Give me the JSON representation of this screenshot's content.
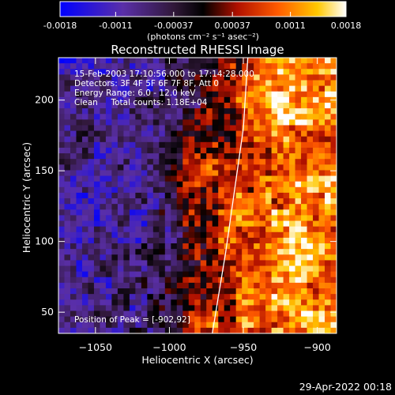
{
  "chart_data": {
    "type": "heatmap",
    "title": "Reconstructed RHESSI Image",
    "xlabel": "Heliocentric X (arcsec)",
    "ylabel": "Heliocentric Y (arcsec)",
    "xlim": [
      -1075,
      -887
    ],
    "ylim": [
      35,
      230
    ],
    "x_ticks": [
      -1050,
      -1000,
      -950,
      -900
    ],
    "y_ticks": [
      50,
      100,
      150,
      200
    ],
    "colorbar": {
      "range": [
        -0.0018,
        0.0018
      ],
      "tick_values": [
        -0.0018,
        -0.0011,
        -0.00037,
        0.00037,
        0.0011,
        0.0018
      ],
      "tick_labels": [
        "-0.0018",
        "-0.0011",
        "-0.00037",
        "0.00037",
        "0.0011",
        "0.0018"
      ],
      "unit": "(photons cm⁻² s⁻¹ asec⁻²)"
    },
    "annotations": [
      "15-Feb-2003 17:10:56.000 to 17:14:28.000",
      "Detectors: 3F 4F 5F 6F 7F 8F, Att 0",
      "Energy Range: 6.0 - 12.0 keV",
      "Clean     Total counts: 1.18E+04"
    ],
    "peak_label": "Position of Peak = [-902,92]",
    "peak_position": [
      -902,
      92
    ],
    "limb_line": [
      [
        -971,
        35
      ],
      [
        -962,
        92
      ],
      [
        -950,
        180
      ],
      [
        -947,
        230
      ]
    ],
    "timestamp": "29-Apr-2022 00:18",
    "colors": {
      "background": "#000000",
      "text": "#ffffff",
      "limb": "#ffffff"
    }
  }
}
